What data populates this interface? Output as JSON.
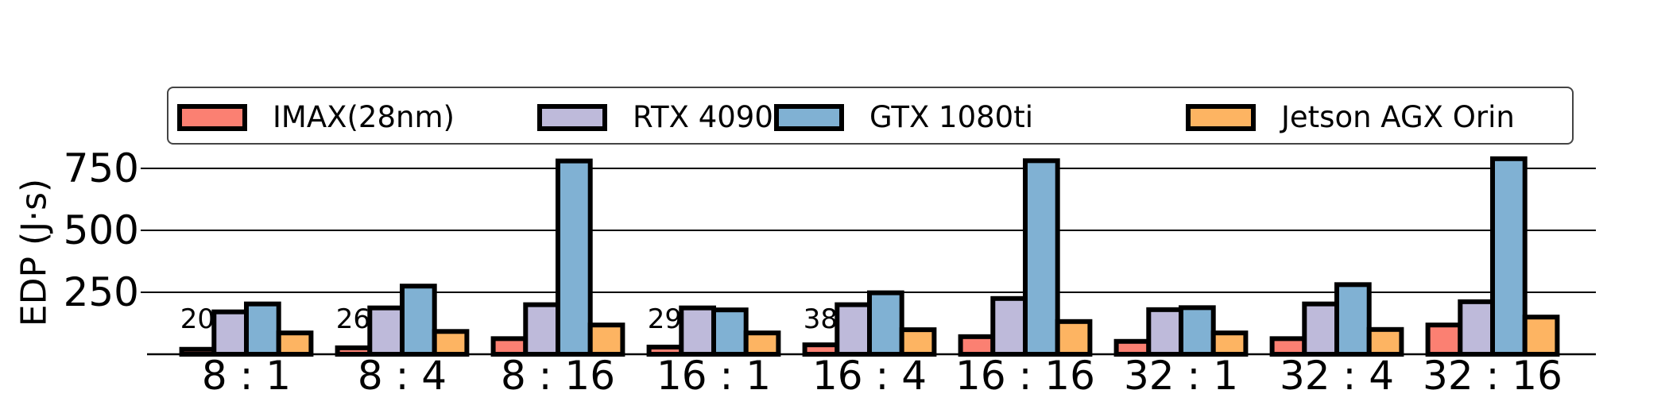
{
  "chart_data": {
    "type": "bar",
    "title": "",
    "xlabel": "",
    "ylabel": "EDP (J·s)",
    "ylim": [
      0,
      800
    ],
    "yticks": [
      250,
      500,
      750
    ],
    "ytick_labels": [
      "250",
      "500",
      "750"
    ],
    "grid": "horizontal",
    "legend_position": "top, above plot",
    "categories": [
      "8 : 1",
      "8 : 4",
      "8 : 16",
      "16 : 1",
      "16 : 4",
      "16 : 16",
      "32 : 1",
      "32 : 4",
      "32 : 16"
    ],
    "series": [
      {
        "name": "IMAX(28nm)",
        "color": "#FB8072",
        "values": [
          20,
          26,
          63,
          29,
          38,
          71,
          52,
          63,
          118
        ]
      },
      {
        "name": "RTX 4090",
        "color": "#BEBADA",
        "values": [
          171,
          187,
          200,
          187,
          200,
          225,
          180,
          203,
          212
        ]
      },
      {
        "name": "GTX 1080ti",
        "color": "#80B1D3",
        "values": [
          203,
          275,
          780,
          179,
          248,
          781,
          188,
          281,
          789
        ]
      },
      {
        "name": "Jetson AGX Orin",
        "color": "#FDB462",
        "values": [
          86,
          92,
          118,
          86,
          99,
          132,
          86,
          100,
          150
        ]
      }
    ],
    "annotations": [
      {
        "category_index": 0,
        "series_index": 0,
        "text": "20"
      },
      {
        "category_index": 1,
        "series_index": 0,
        "text": "26"
      },
      {
        "category_index": 3,
        "series_index": 0,
        "text": "29"
      },
      {
        "category_index": 4,
        "series_index": 0,
        "text": "38"
      }
    ]
  },
  "legend": {
    "items": [
      {
        "label": "IMAX(28nm)",
        "color": "#FB8072"
      },
      {
        "label": "RTX 4090",
        "color": "#BEBADA"
      },
      {
        "label": "GTX 1080ti",
        "color": "#80B1D3"
      },
      {
        "label": "Jetson AGX Orin",
        "color": "#FDB462"
      }
    ]
  },
  "axis": {
    "ylabel": "EDP (J·s)",
    "yticks": [
      "250",
      "500",
      "750"
    ],
    "xticks": [
      "8 : 1",
      "8 : 4",
      "8 : 16",
      "16 : 1",
      "16 : 4",
      "16 : 16",
      "32 : 1",
      "32 : 4",
      "32 : 16"
    ]
  }
}
